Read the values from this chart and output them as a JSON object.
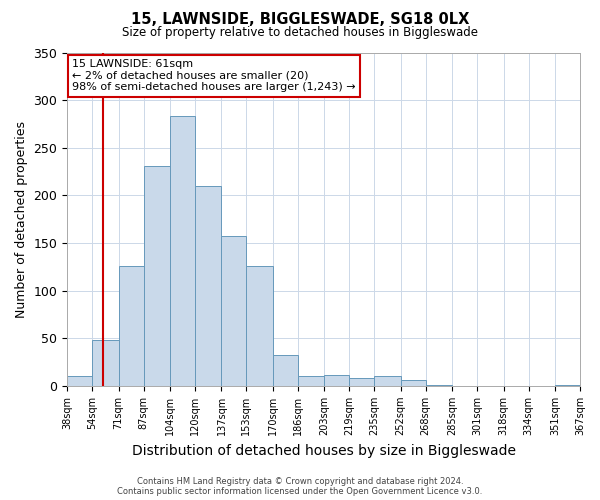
{
  "title": "15, LAWNSIDE, BIGGLESWADE, SG18 0LX",
  "subtitle": "Size of property relative to detached houses in Biggleswade",
  "xlabel": "Distribution of detached houses by size in Biggleswade",
  "ylabel": "Number of detached properties",
  "bin_labels": [
    "38sqm",
    "54sqm",
    "71sqm",
    "87sqm",
    "104sqm",
    "120sqm",
    "137sqm",
    "153sqm",
    "170sqm",
    "186sqm",
    "203sqm",
    "219sqm",
    "235sqm",
    "252sqm",
    "268sqm",
    "285sqm",
    "301sqm",
    "318sqm",
    "334sqm",
    "351sqm",
    "367sqm"
  ],
  "bar_heights": [
    10,
    48,
    126,
    231,
    283,
    210,
    157,
    126,
    33,
    10,
    12,
    8,
    10,
    6,
    1,
    0,
    0,
    0,
    0,
    1,
    0
  ],
  "bar_color": "#c9d9ea",
  "bar_edge_color": "#6699bb",
  "ylim": [
    0,
    350
  ],
  "yticks": [
    0,
    50,
    100,
    150,
    200,
    250,
    300,
    350
  ],
  "property_line_x": 61,
  "bin_edges_sqm": [
    38,
    54,
    71,
    87,
    104,
    120,
    137,
    153,
    170,
    186,
    203,
    219,
    235,
    252,
    268,
    285,
    301,
    318,
    334,
    351,
    367
  ],
  "annotation_title": "15 LAWNSIDE: 61sqm",
  "annotation_line1": "← 2% of detached houses are smaller (20)",
  "annotation_line2": "98% of semi-detached houses are larger (1,243) →",
  "annotation_box_color": "#ffffff",
  "annotation_box_edge_color": "#cc0000",
  "footer_line1": "Contains HM Land Registry data © Crown copyright and database right 2024.",
  "footer_line2": "Contains public sector information licensed under the Open Government Licence v3.0.",
  "background_color": "#ffffff",
  "grid_color": "#ccd8e8"
}
